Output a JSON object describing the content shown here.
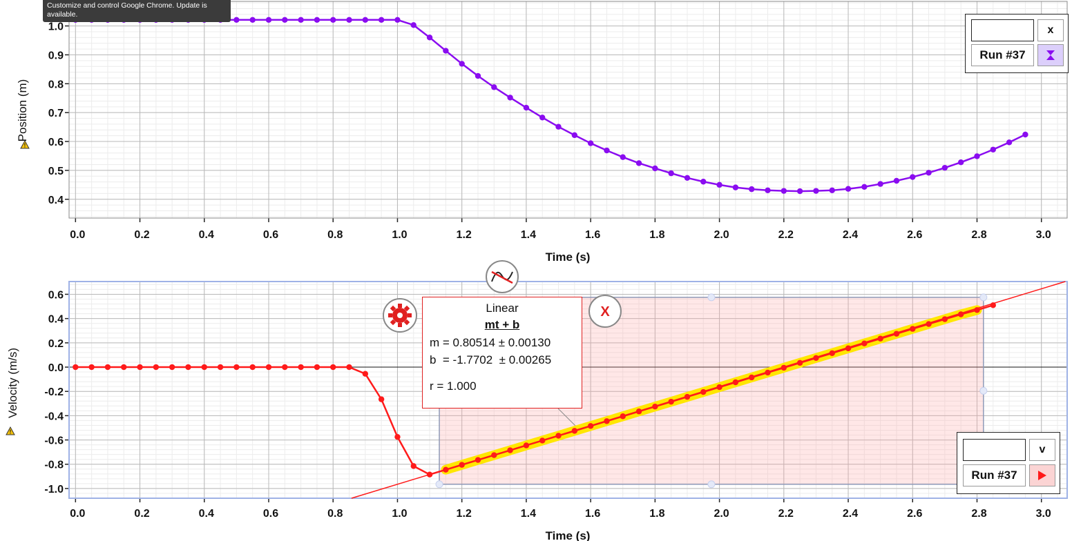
{
  "tooltip": {
    "text": "Customize and control Google Chrome. Update is available."
  },
  "legend_top": {
    "column_label": "x",
    "run_label": "Run #37",
    "color": "#8a0cf0",
    "icon": "hourglass-icon"
  },
  "legend_bottom": {
    "column_label": "v",
    "run_label": "Run #37",
    "color": "#ff1a1a",
    "icon": "play-icon"
  },
  "fit": {
    "title": "Linear",
    "equation": "mt + b",
    "m_line": "m = 0.80514 ± 0.00130",
    "b_line": "b  = -1.7702  ± 0.00265",
    "r_line": "r = 1.000"
  },
  "chart_data": [
    {
      "type": "line",
      "xlabel": "Time (s)",
      "ylabel": "Position (m)",
      "xlim": [
        -0.02,
        3.08
      ],
      "ylim": [
        0.335,
        1.085
      ],
      "xticks": [
        "0.0",
        "0.2",
        "0.4",
        "0.6",
        "0.8",
        "1.0",
        "1.2",
        "1.4",
        "1.6",
        "1.8",
        "2.0",
        "2.2",
        "2.4",
        "2.6",
        "2.8",
        "3.0"
      ],
      "yticks": [
        "0.4",
        "0.5",
        "0.6",
        "0.7",
        "0.8",
        "0.9",
        "1.0"
      ],
      "grid": true,
      "series": [
        {
          "name": "Run #37",
          "color": "#8a0cf0",
          "x": [
            0,
            0.05,
            0.1,
            0.15,
            0.2,
            0.25,
            0.3,
            0.35,
            0.4,
            0.45,
            0.5,
            0.55,
            0.6,
            0.65,
            0.7,
            0.75,
            0.8,
            0.85,
            0.9,
            0.95,
            1.0,
            1.05,
            1.1,
            1.15,
            1.2,
            1.25,
            1.3,
            1.35,
            1.4,
            1.45,
            1.5,
            1.55,
            1.6,
            1.65,
            1.7,
            1.75,
            1.8,
            1.85,
            1.9,
            1.95,
            2.0,
            2.05,
            2.1,
            2.15,
            2.2,
            2.25,
            2.3,
            2.35,
            2.4,
            2.45,
            2.5,
            2.55,
            2.6,
            2.65,
            2.7,
            2.75,
            2.8,
            2.85,
            2.9,
            2.95
          ],
          "values": [
            1.021,
            1.021,
            1.021,
            1.021,
            1.021,
            1.021,
            1.021,
            1.021,
            1.021,
            1.021,
            1.021,
            1.021,
            1.021,
            1.021,
            1.021,
            1.021,
            1.021,
            1.021,
            1.021,
            1.021,
            1.021,
            1.003,
            0.96,
            0.914,
            0.869,
            0.827,
            0.788,
            0.752,
            0.717,
            0.683,
            0.651,
            0.622,
            0.594,
            0.569,
            0.546,
            0.525,
            0.507,
            0.49,
            0.474,
            0.461,
            0.45,
            0.441,
            0.435,
            0.431,
            0.429,
            0.428,
            0.429,
            0.431,
            0.436,
            0.443,
            0.453,
            0.464,
            0.477,
            0.492,
            0.509,
            0.528,
            0.549,
            0.572,
            0.597,
            0.624
          ]
        }
      ]
    },
    {
      "type": "line",
      "xlabel": "Time (s)",
      "ylabel": "Velocity (m/s)",
      "xlim": [
        -0.02,
        3.08
      ],
      "ylim": [
        -1.08,
        0.705
      ],
      "xticks": [
        "0.0",
        "0.2",
        "0.4",
        "0.6",
        "0.8",
        "1.0",
        "1.2",
        "1.4",
        "1.6",
        "1.8",
        "2.0",
        "2.2",
        "2.4",
        "2.6",
        "2.8",
        "3.0"
      ],
      "yticks": [
        "-1.0",
        "-0.8",
        "-0.6",
        "-0.4",
        "-0.2",
        "0.0",
        "0.2",
        "0.4",
        "0.6"
      ],
      "grid": true,
      "selection_range": [
        1.13,
        2.82
      ],
      "fit_line": {
        "slope": 0.80514,
        "intercept": -1.7702,
        "color": "#ff1a1a"
      },
      "series": [
        {
          "name": "Run #37",
          "color": "#ff1a1a",
          "x": [
            0,
            0.05,
            0.1,
            0.15,
            0.2,
            0.25,
            0.3,
            0.35,
            0.4,
            0.45,
            0.5,
            0.55,
            0.6,
            0.65,
            0.7,
            0.75,
            0.8,
            0.85,
            0.9,
            0.95,
            1.0,
            1.05,
            1.1,
            1.15,
            1.2,
            1.25,
            1.3,
            1.35,
            1.4,
            1.45,
            1.5,
            1.55,
            1.6,
            1.65,
            1.7,
            1.75,
            1.8,
            1.85,
            1.9,
            1.95,
            2.0,
            2.05,
            2.1,
            2.15,
            2.2,
            2.25,
            2.3,
            2.35,
            2.4,
            2.45,
            2.5,
            2.55,
            2.6,
            2.65,
            2.7,
            2.75,
            2.8,
            2.85
          ],
          "values": [
            0,
            0,
            0,
            0,
            0,
            0,
            0,
            0,
            0,
            0,
            0,
            0,
            0,
            0,
            0,
            0,
            0,
            0,
            -0.055,
            -0.265,
            -0.575,
            -0.815,
            -0.885,
            -0.845,
            -0.805,
            -0.765,
            -0.725,
            -0.685,
            -0.645,
            -0.605,
            -0.565,
            -0.525,
            -0.485,
            -0.445,
            -0.405,
            -0.365,
            -0.325,
            -0.285,
            -0.245,
            -0.205,
            -0.165,
            -0.125,
            -0.085,
            -0.045,
            -0.005,
            0.035,
            0.075,
            0.115,
            0.155,
            0.195,
            0.235,
            0.275,
            0.315,
            0.355,
            0.395,
            0.435,
            0.47,
            0.51
          ]
        }
      ]
    }
  ]
}
